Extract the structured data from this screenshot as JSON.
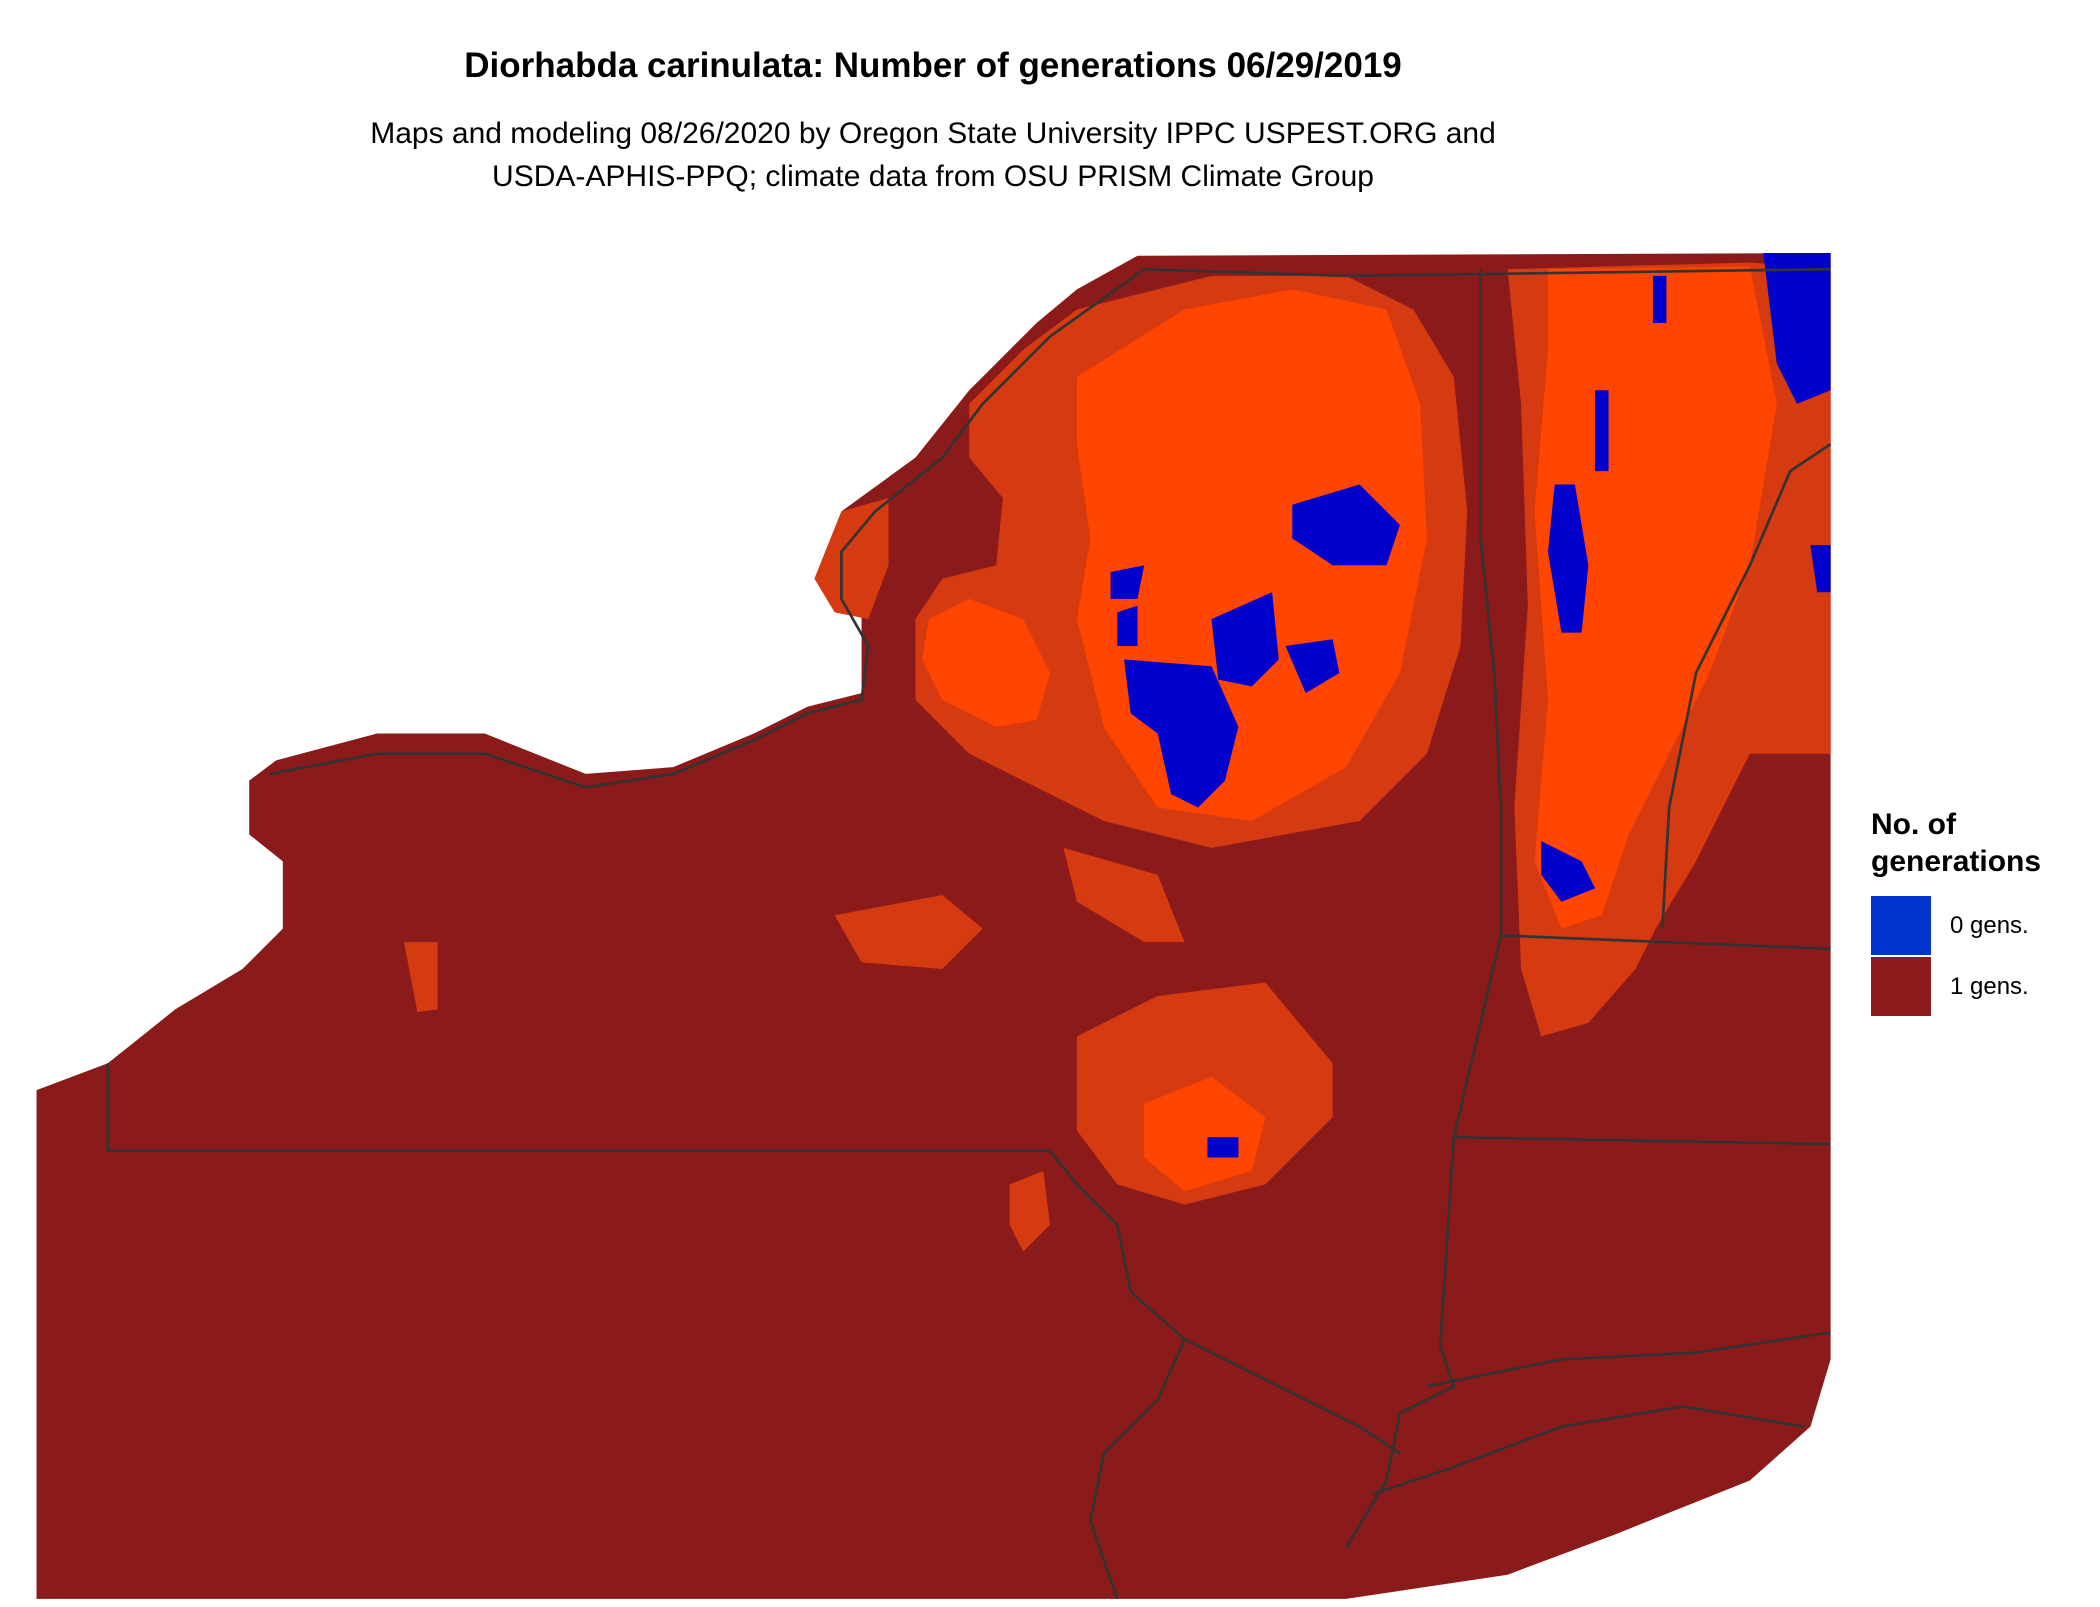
{
  "title": "Diorhabda carinulata: Number of generations 06/29/2019",
  "subtitle": [
    "Maps and modeling 08/26/2020 by Oregon State University IPPC USPEST.ORG and",
    "USDA-APHIS-PPQ; climate data from OSU PRISM Climate Group"
  ],
  "legend": {
    "title": "No. of generations",
    "items": [
      {
        "label": "0 gens.",
        "color": "#0033cc"
      },
      {
        "label": "1 gens.",
        "color": "#8b1a1a"
      }
    ]
  }
}
